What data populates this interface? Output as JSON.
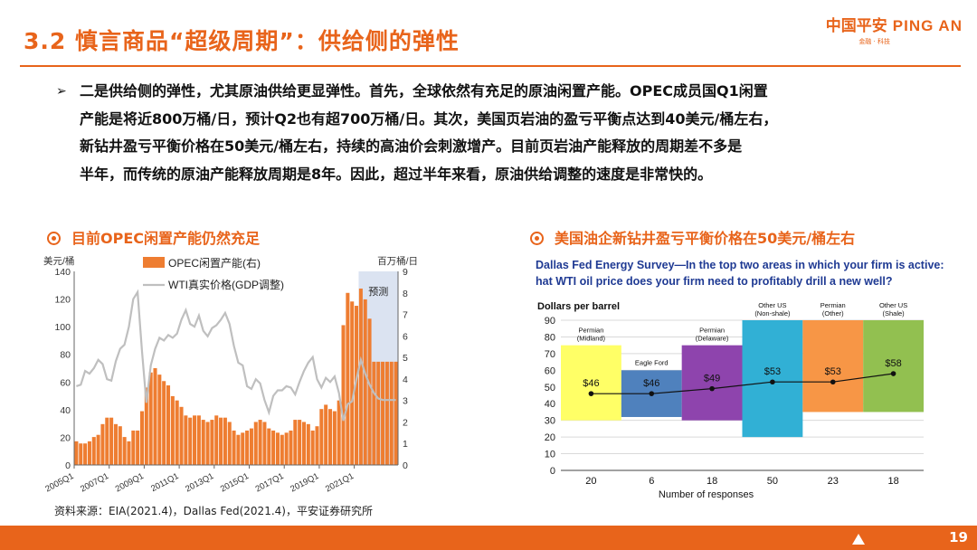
{
  "header": {
    "title": "3.2 慎言商品“超级周期”：供给侧的弹性",
    "logo_cn": "中国平安",
    "logo_en": "PING AN",
    "logo_sub": "金融 · 科技"
  },
  "bullet": {
    "lines": [
      "二是供给侧的弹性，尤其原油供给更显弹性。首先，全球依然有充足的原油闲置产能。OPEC成员国Q1闲置",
      "产能是将近800万桶/日，预计Q2也有超700万桶/日。其次，美国页岩油的盈亏平衡点达到40美元/桶左右，",
      "新钻井盈亏平衡价格在50美元/桶左右，持续的高油价会刺激增产。目前页岩油产能释放的周期差不多是",
      "半年，而传统的原油产能释放周期是8年。因此，超过半年来看，原油供给调整的速度是非常快的。"
    ]
  },
  "left_section": {
    "heading": "目前OPEC闲置产能仍然充足"
  },
  "right_section": {
    "heading": "美国油企新钻井盈亏平衡价格在50美元/桶左右"
  },
  "source": "资料来源：EIA(2021.4)，Dallas Fed(2021.4)，平安证券研究所",
  "page_number": "19",
  "colors": {
    "accent": "#e8641b",
    "bar": "#ee7d31",
    "line": "#bfbfbf",
    "forecast": "#dbe3f1"
  },
  "chart_data": [
    {
      "type": "bar",
      "ylabel": "美元/桶",
      "y2label": "百万桶/日",
      "ylim": [
        0,
        140
      ],
      "y2lim": [
        0,
        9
      ],
      "xlim": [
        "2005Q1",
        "2022Q4"
      ],
      "x_ticks": [
        "2005Q1",
        "2007Q1",
        "2009Q1",
        "2011Q1",
        "2013Q1",
        "2015Q1",
        "2017Q1",
        "2019Q1",
        "2021Q1"
      ],
      "forecast_label": "预测",
      "forecast_start": "2021Q2",
      "series": [
        {
          "name": "OPEC闲置产能(右)",
          "kind": "bar",
          "axis": "right",
          "values": [
            1.1,
            1.0,
            1.0,
            1.1,
            1.3,
            1.4,
            1.9,
            2.2,
            2.2,
            1.9,
            1.8,
            1.3,
            1.1,
            1.6,
            1.6,
            2.5,
            3.6,
            4.3,
            4.5,
            4.2,
            3.9,
            3.7,
            3.2,
            3.0,
            2.7,
            2.3,
            2.2,
            2.3,
            2.3,
            2.1,
            2.0,
            2.1,
            2.3,
            2.2,
            2.2,
            2.0,
            1.6,
            1.4,
            1.5,
            1.6,
            1.7,
            2.0,
            2.1,
            2.0,
            1.7,
            1.6,
            1.5,
            1.4,
            1.5,
            1.6,
            2.1,
            2.1,
            2.0,
            1.9,
            1.6,
            1.8,
            2.6,
            2.8,
            2.6,
            2.5,
            3.0,
            6.5,
            8.0,
            7.6,
            7.4,
            8.2,
            7.7,
            6.8,
            4.8,
            4.8,
            4.8,
            4.8,
            4.8,
            4.8
          ]
        },
        {
          "name": "WTI真实价格(GDP调整)",
          "kind": "line",
          "axis": "left",
          "values": [
            57,
            58,
            68,
            66,
            70,
            76,
            73,
            62,
            61,
            75,
            84,
            87,
            100,
            120,
            125,
            82,
            45,
            72,
            84,
            92,
            90,
            94,
            92,
            95,
            105,
            112,
            102,
            100,
            108,
            97,
            93,
            99,
            101,
            105,
            110,
            102,
            86,
            74,
            72,
            57,
            55,
            62,
            59,
            47,
            38,
            50,
            54,
            54,
            57,
            56,
            51,
            60,
            68,
            74,
            78,
            62,
            56,
            63,
            60,
            64,
            52,
            32,
            44,
            46,
            62,
            76,
            66,
            58,
            52,
            48,
            47,
            47,
            47,
            47
          ]
        }
      ]
    },
    {
      "type": "bar",
      "title": "Dallas Fed Energy Survey—In the top two areas in which your firm is active: What WTI oil price does your firm need to profitably drill a new well?",
      "ylabel": "Dollars per barrel",
      "xlabel": "Number of responses",
      "ylim": [
        0,
        90
      ],
      "y_ticks": [
        0,
        10,
        20,
        30,
        40,
        50,
        60,
        70,
        80,
        90
      ],
      "categories": [
        {
          "name": "Permian (Midland)",
          "responses": 20,
          "low": 30,
          "high": 75,
          "average": 46,
          "label": "$46",
          "color": "#ffff66"
        },
        {
          "name": "Eagle Ford",
          "responses": 6,
          "low": 32,
          "high": 60,
          "average": 46,
          "label": "$46",
          "color": "#4f81bd"
        },
        {
          "name": "Permian (Delaware)",
          "responses": 18,
          "low": 30,
          "high": 75,
          "average": 49,
          "label": "$49",
          "color": "#8e44ad"
        },
        {
          "name": "Other US (Non-shale)",
          "responses": 50,
          "low": 20,
          "high": 90,
          "average": 53,
          "label": "$53",
          "color": "#31b0d5"
        },
        {
          "name": "Permian (Other)",
          "responses": 23,
          "low": 35,
          "high": 90,
          "average": 53,
          "label": "$53",
          "color": "#f79646"
        },
        {
          "name": "Other US (Shale)",
          "responses": 18,
          "low": 35,
          "high": 90,
          "average": 58,
          "label": "$58",
          "color": "#92c050"
        }
      ]
    }
  ]
}
